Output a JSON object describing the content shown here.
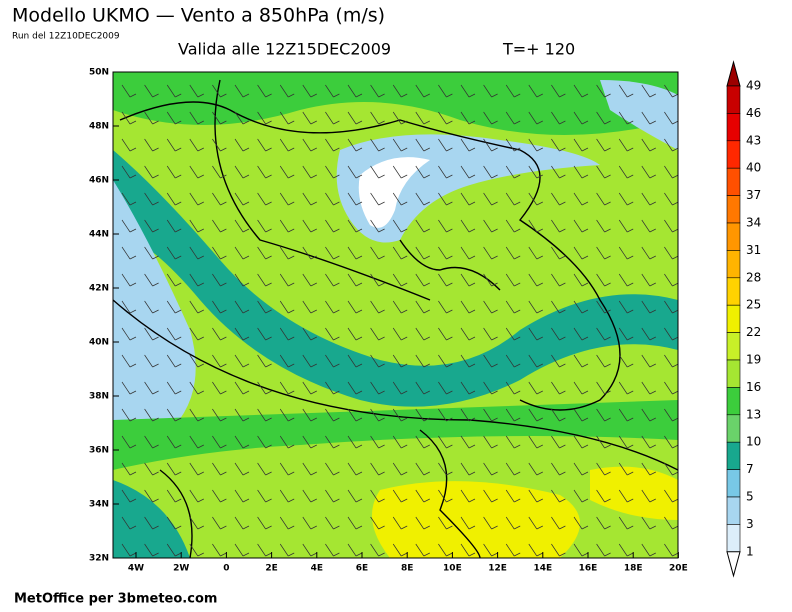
{
  "header": {
    "title": "Modello UKMO — Vento a 850hPa (m/s)",
    "run": "Run del 12Z10DEC2009",
    "valid": "Valida alle 12Z15DEC2009",
    "lead": "T=+ 120"
  },
  "map": {
    "lat_labels": [
      "50N",
      "48N",
      "46N",
      "44N",
      "42N",
      "40N",
      "38N",
      "36N",
      "34N",
      "32N"
    ],
    "lon_labels": [
      "4W",
      "2W",
      "0",
      "2E",
      "4E",
      "6E",
      "8E",
      "10E",
      "12E",
      "14E",
      "16E",
      "18E",
      "20E"
    ]
  },
  "legend": {
    "labels": [
      "49",
      "46",
      "43",
      "40",
      "37",
      "34",
      "31",
      "28",
      "25",
      "22",
      "19",
      "16",
      "13",
      "10",
      "7",
      "5",
      "3",
      "1"
    ]
  },
  "footer": "MetOffice per 3bmeteo.com"
}
